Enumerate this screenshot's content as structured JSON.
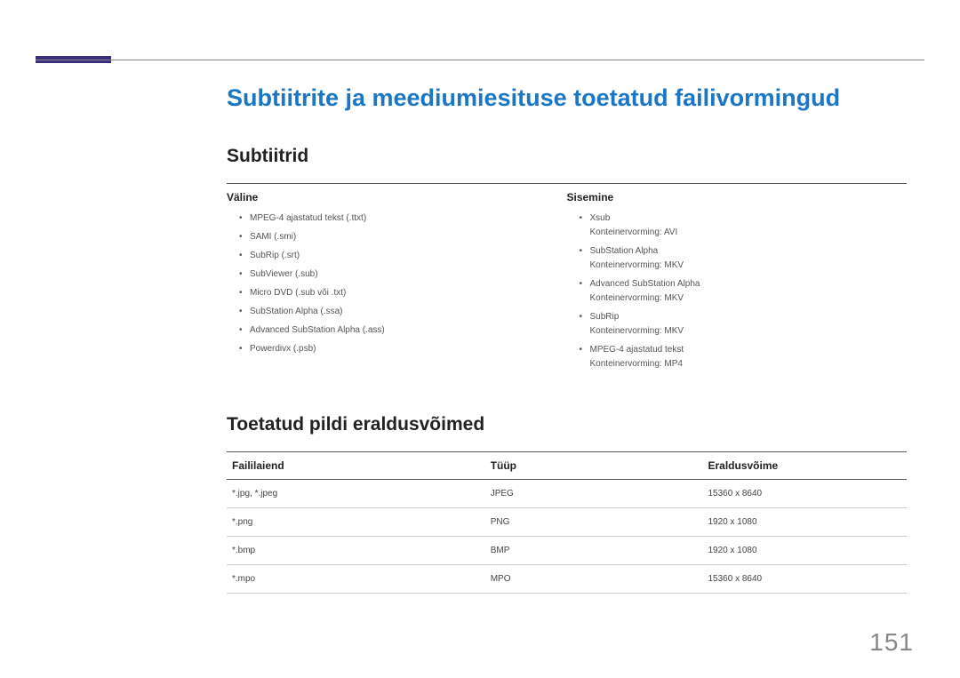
{
  "page": {
    "number": "151"
  },
  "title": "Subtiitrite ja meediumiesituse toetatud failivormingud",
  "section1": {
    "heading": "Subtiitrid",
    "col_left": {
      "header": "Väline",
      "items": [
        {
          "text": "MPEG-4 ajastatud tekst (.ttxt)"
        },
        {
          "text": "SAMI (.smi)"
        },
        {
          "text": "SubRip (.srt)"
        },
        {
          "text": "SubViewer (.sub)"
        },
        {
          "text": "Micro DVD (.sub või .txt)"
        },
        {
          "text": "SubStation Alpha (.ssa)"
        },
        {
          "text": "Advanced SubStation Alpha (.ass)"
        },
        {
          "text": "Powerdivx (.psb)"
        }
      ]
    },
    "col_right": {
      "header": "Sisemine",
      "items": [
        {
          "text": "Xsub",
          "sub": "Konteinervorming: AVI"
        },
        {
          "text": "SubStation Alpha",
          "sub": "Konteinervorming: MKV"
        },
        {
          "text": "Advanced SubStation Alpha",
          "sub": "Konteinervorming: MKV"
        },
        {
          "text": "SubRip",
          "sub": "Konteinervorming: MKV"
        },
        {
          "text": "MPEG-4 ajastatud tekst",
          "sub": "Konteinervorming: MP4"
        }
      ]
    }
  },
  "section2": {
    "heading": "Toetatud pildi eraldusvõimed",
    "columns": [
      "Faililaiend",
      "Tüüp",
      "Eraldusvõime"
    ],
    "col_widths": [
      "38%",
      "32%",
      "30%"
    ],
    "rows": [
      [
        "*.jpg, *.jpeg",
        "JPEG",
        "15360 x 8640"
      ],
      [
        "*.png",
        "PNG",
        "1920 x 1080"
      ],
      [
        "*.bmp",
        "BMP",
        "1920 x 1080"
      ],
      [
        "*.mpo",
        "MPO",
        "15360 x 8640"
      ]
    ]
  },
  "colors": {
    "title": "#1b77c4",
    "accent": "#3b2e7e"
  }
}
